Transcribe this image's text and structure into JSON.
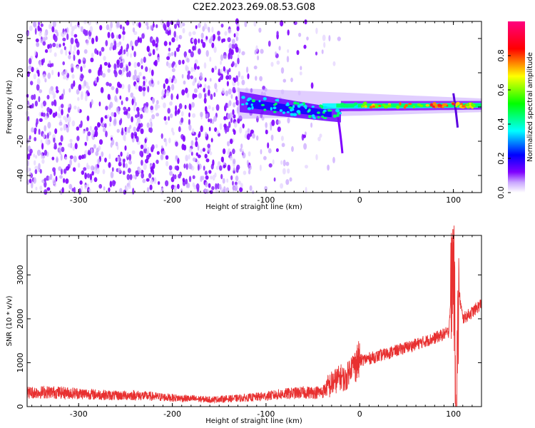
{
  "title": "C2E2.2023.269.08.53.G08",
  "chart_data": [
    {
      "type": "heatmap",
      "id": "spectrogram",
      "xlabel": "Height of straight line (km)",
      "ylabel": "Frequency (Hz)",
      "xlim": [
        -355,
        130
      ],
      "ylim": [
        -50,
        50
      ],
      "xticks": [
        -300,
        -200,
        -100,
        0,
        100
      ],
      "yticks": [
        -40,
        -20,
        0,
        20,
        40
      ],
      "colorbar": {
        "label": "Normalized spectral amplitude",
        "range": [
          0,
          1
        ],
        "ticks": [
          0.0,
          0.2,
          0.4,
          0.6,
          0.8
        ],
        "tick_labels": [
          "0.0",
          "0.2",
          "0.4",
          "0.6",
          "0.8"
        ],
        "colors": [
          "#ffffff",
          "#7f00ff",
          "#0000ff",
          "#00ffff",
          "#00ff00",
          "#ffff00",
          "#ff0000",
          "#ff0080"
        ]
      },
      "features": [
        {
          "name": "noise",
          "x_range": [
            -355,
            -20
          ],
          "freq_range": [
            -50,
            50
          ]
        },
        {
          "name": "signal",
          "x_range": [
            -130,
            130
          ],
          "center_freq": 0,
          "note": "narrow band tightens and intensifies toward x > 0"
        },
        {
          "name": "dip",
          "x": -20,
          "freq_min": -27
        },
        {
          "name": "spike",
          "x": 100,
          "freq_range": [
            -12,
            8
          ]
        }
      ]
    },
    {
      "type": "line",
      "id": "snr",
      "xlabel": "Height of straight line (km)",
      "ylabel": "SNR (10 * v/v)",
      "xlim": [
        -355,
        130
      ],
      "ylim": [
        0,
        3900
      ],
      "xticks": [
        -300,
        -200,
        -100,
        0,
        100
      ],
      "yticks": [
        0,
        1000,
        2000,
        3000
      ],
      "color": "#e83030",
      "series": [
        {
          "x": [
            -355,
            -330,
            -300,
            -260,
            -240,
            -200,
            -160,
            -120,
            -100,
            -80,
            -60,
            -40,
            -30,
            -20,
            -15,
            -10,
            0,
            20,
            40,
            60,
            80,
            95,
            100,
            103,
            106,
            110,
            120,
            130
          ],
          "values": [
            320,
            330,
            300,
            250,
            260,
            200,
            160,
            200,
            240,
            290,
            320,
            330,
            520,
            680,
            600,
            900,
            1050,
            1150,
            1280,
            1420,
            1560,
            1700,
            3500,
            200,
            2600,
            2000,
            2150,
            2350
          ]
        }
      ]
    }
  ]
}
